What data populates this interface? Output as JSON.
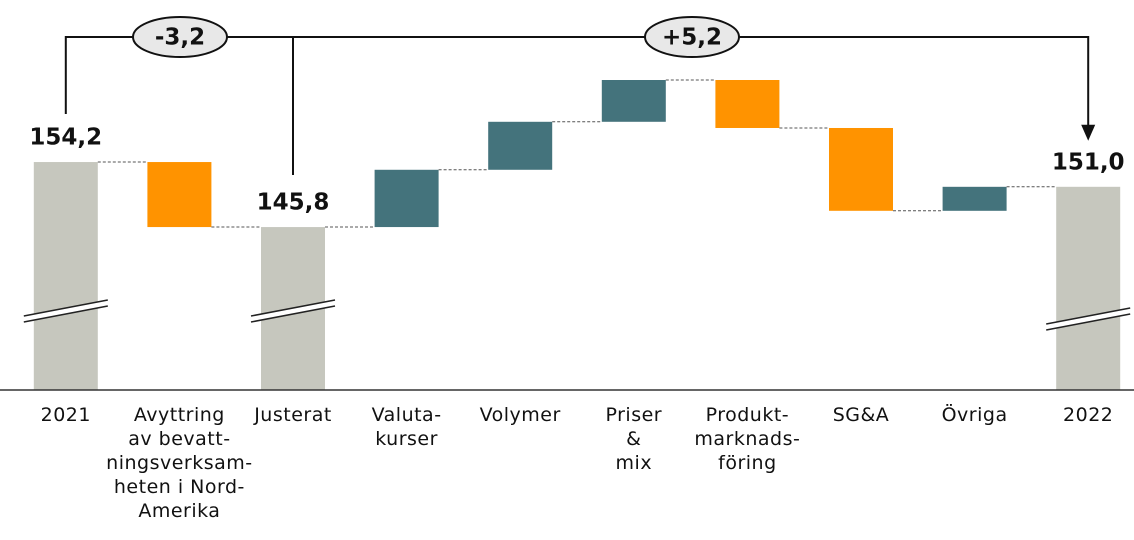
{
  "chart_data": {
    "type": "waterfall",
    "categories": [
      "2021",
      "Avyttring\nav bevatt-\nningsverksam-\nheten i Nord-\nAmerika",
      "Justerat",
      "Valuta-\nkurser",
      "Volymer",
      "Priser\n&\nmix",
      "Produkt-\nmarknads-\nföring",
      "SG&A",
      "Övriga",
      "2022"
    ],
    "measure": [
      "total",
      "relative",
      "total",
      "relative",
      "relative",
      "relative",
      "relative",
      "relative",
      "relative",
      "total"
    ],
    "values": [
      154.2,
      -8.4,
      145.8,
      7.4,
      6.2,
      5.4,
      -6.2,
      -10.7,
      3.1,
      151.0
    ],
    "value_labels": [
      "154,2",
      null,
      "145,8",
      null,
      null,
      null,
      null,
      null,
      null,
      "151,0"
    ],
    "colors": {
      "total": "#c6c7be",
      "increase": "#44737c",
      "decrease": "#ff9300"
    },
    "annotations": [
      {
        "text": "-3,2",
        "value": -3.2
      },
      {
        "text": "+5,2",
        "value": 5.2
      }
    ]
  }
}
